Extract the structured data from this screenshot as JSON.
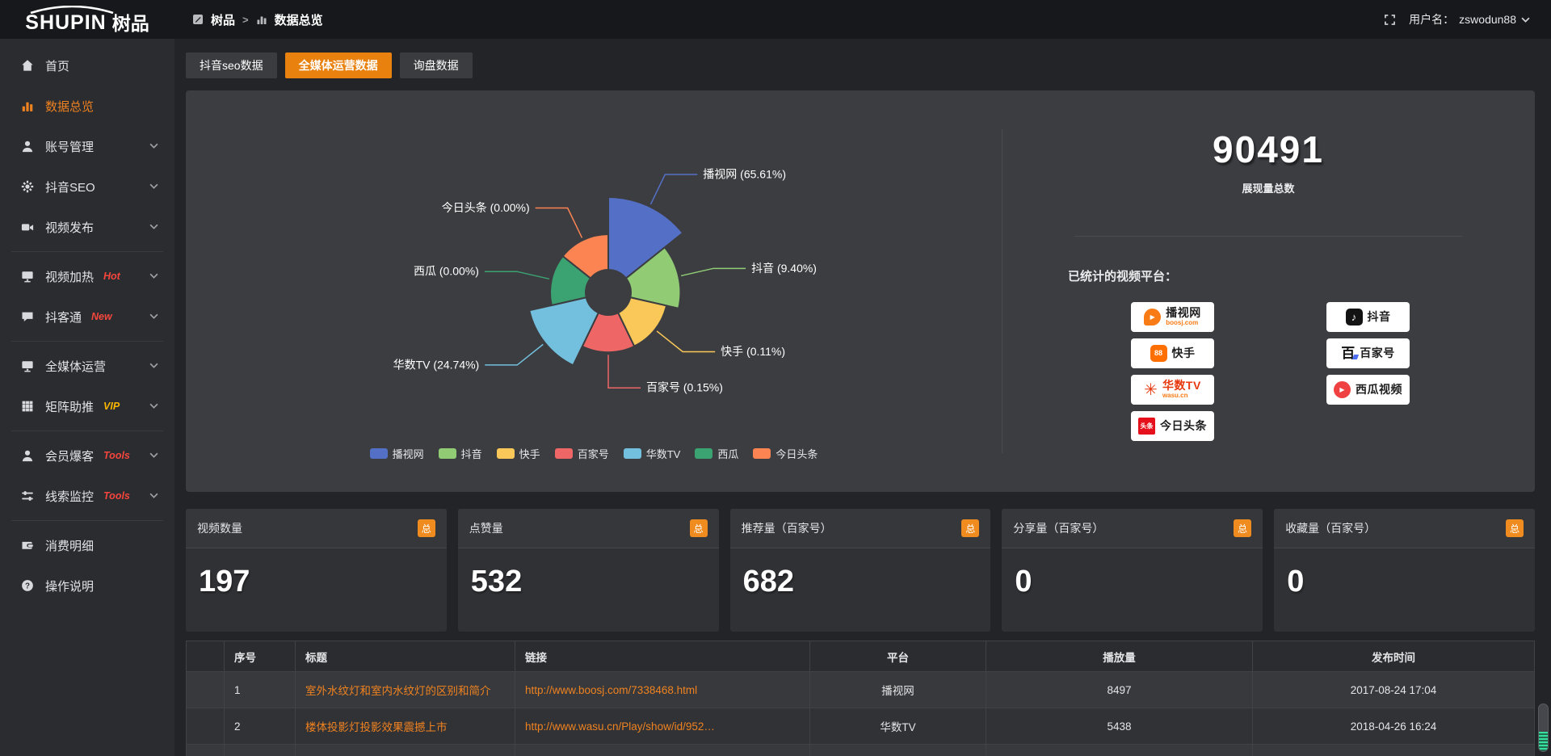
{
  "topbar": {
    "logo_main": "SHUPIN",
    "logo_cn": "树品",
    "breadcrumb_root": "树品",
    "breadcrumb_sep": ">",
    "breadcrumb_current": "数据总览",
    "username_label": "用户名：",
    "username": "zswodun88"
  },
  "sidebar": {
    "items": [
      {
        "key": "home",
        "icon": "home-icon",
        "label": "首页"
      },
      {
        "key": "data-overview",
        "icon": "bar-chart-icon",
        "label": "数据总览",
        "active": true
      },
      {
        "key": "account-management",
        "icon": "user-icon",
        "label": "账号管理",
        "expandable": true
      },
      {
        "key": "douyin-seo",
        "icon": "gear-icon",
        "label": "抖音SEO",
        "expandable": true
      },
      {
        "key": "video-publish",
        "icon": "video-camera-icon",
        "label": "视频发布",
        "expandable": true,
        "divider_after": true
      },
      {
        "key": "video-heating",
        "icon": "screen-icon",
        "label": "视频加热",
        "tag": "Hot",
        "tag_color": "#f5463d",
        "expandable": true
      },
      {
        "key": "douketong",
        "icon": "comment-icon",
        "label": "抖客通",
        "tag": "New",
        "tag_color": "#f5463d",
        "expandable": true,
        "divider_after": true
      },
      {
        "key": "omni-media",
        "icon": "monitor-icon",
        "label": "全媒体运营",
        "expandable": true
      },
      {
        "key": "matrix-boost",
        "icon": "grid-icon",
        "label": "矩阵助推",
        "tag": "VIP",
        "tag_color": "#f7b500",
        "expandable": true,
        "divider_after": true
      },
      {
        "key": "member-leads",
        "icon": "member-icon",
        "label": "会员爆客",
        "tag": "Tools",
        "tag_color": "#f5463d",
        "expandable": true
      },
      {
        "key": "clue-monitor",
        "icon": "sliders-icon",
        "label": "线索监控",
        "tag": "Tools",
        "tag_color": "#f5463d",
        "expandable": true,
        "divider_after": true
      },
      {
        "key": "consumption-detail",
        "icon": "wallet-icon",
        "label": "消费明细"
      },
      {
        "key": "operation-guide",
        "icon": "help-icon",
        "label": "操作说明"
      }
    ]
  },
  "tabs": [
    {
      "key": "douyin-seo-data",
      "label": "抖音seo数据",
      "active": false
    },
    {
      "key": "omni-media-data",
      "label": "全媒体运营数据",
      "active": true
    },
    {
      "key": "inquiry-data",
      "label": "询盘数据",
      "active": false
    }
  ],
  "chart_data": {
    "type": "pie",
    "subtype": "rose",
    "categories": [
      "播视网",
      "抖音",
      "快手",
      "百家号",
      "华数TV",
      "西瓜",
      "今日头条"
    ],
    "values": [
      65.61,
      9.4,
      0.11,
      0.15,
      24.74,
      0.0,
      0.0
    ],
    "value_unit": "percent",
    "labels": [
      "播视网 (65.61%)",
      "抖音 (9.40%)",
      "快手 (0.11%)",
      "百家号 (0.15%)",
      "华数TV (24.74%)",
      "西瓜 (0.00%)",
      "今日头条 (0.00%)"
    ],
    "colors": [
      "#5470c6",
      "#91cc75",
      "#fac858",
      "#ee6666",
      "#73c0de",
      "#3ba272",
      "#fc8452"
    ],
    "legend": [
      "播视网",
      "抖音",
      "快手",
      "百家号",
      "华数TV",
      "西瓜",
      "今日头条"
    ],
    "legend_position": "bottom"
  },
  "summary": {
    "total": "90491",
    "total_label": "展现量总数",
    "platforms_label": "已统计的视频平台：",
    "platforms": [
      {
        "key": "boosj",
        "name": "播视网",
        "sub": "boosj.com",
        "column": 0
      },
      {
        "key": "kuaishou",
        "name": "快手",
        "sub": "",
        "column": 0
      },
      {
        "key": "wasu",
        "name": "华数TV",
        "sub": "wasu.cn",
        "column": 0
      },
      {
        "key": "toutiao",
        "name": "今日头条",
        "sub": "",
        "column": 0
      },
      {
        "key": "douyin",
        "name": "抖音",
        "sub": "",
        "column": 1
      },
      {
        "key": "baijiahao",
        "name": "百家号",
        "sub": "",
        "column": 1
      },
      {
        "key": "xigua",
        "name": "西瓜视频",
        "sub": "",
        "column": 1
      }
    ]
  },
  "stats": [
    {
      "key": "video-count",
      "title": "视频数量",
      "badge": "总",
      "value": "197"
    },
    {
      "key": "like-count",
      "title": "点赞量",
      "badge": "总",
      "value": "532"
    },
    {
      "key": "recommend-count",
      "title": "推荐量（百家号）",
      "badge": "总",
      "value": "682"
    },
    {
      "key": "share-count",
      "title": "分享量（百家号）",
      "badge": "总",
      "value": "0"
    },
    {
      "key": "favorite-count",
      "title": "收藏量（百家号）",
      "badge": "总",
      "value": "0"
    }
  ],
  "table": {
    "headers": [
      "序号",
      "标题",
      "链接",
      "平台",
      "播放量",
      "发布时间"
    ],
    "rows": [
      {
        "index": "1",
        "title": "室外水纹灯和室内水纹灯的区别和简介",
        "link": "http://www.boosj.com/7338468.html",
        "platform": "播视网",
        "plays": "8497",
        "published": "2017-08-24 17:04"
      },
      {
        "index": "2",
        "title": "楼体投影灯投影效果震撼上市",
        "link": "http://www.wasu.cn/Play/show/id/952…",
        "platform": "华数TV",
        "plays": "5438",
        "published": "2018-04-26 16:24"
      }
    ]
  },
  "colors": {
    "accent_orange": "#e8810e",
    "badge_orange": "#ef8b1f",
    "link_orange": "#ef8220",
    "tag_red": "#f5463d",
    "tag_gold": "#f7b500",
    "panel_bg": "#3c3d41"
  }
}
